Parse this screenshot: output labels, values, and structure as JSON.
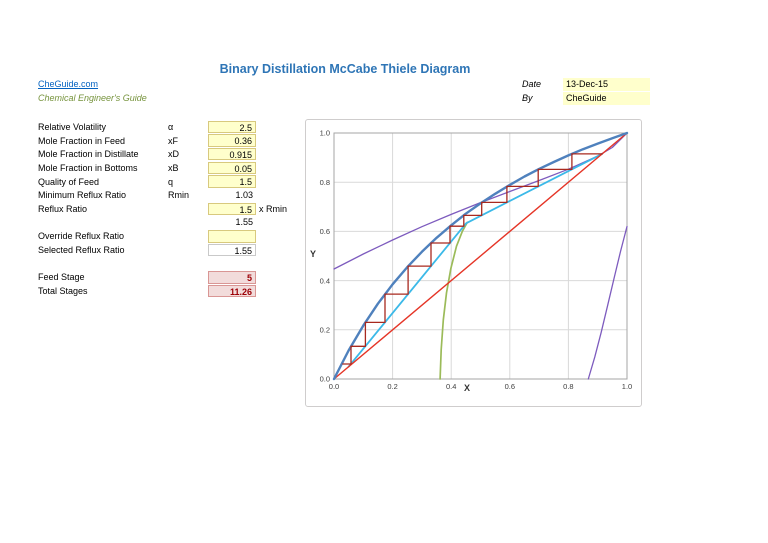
{
  "title": "Binary Distillation McCabe Thiele Diagram",
  "header": {
    "site_link": "CheGuide.com",
    "site_subtitle": "Chemical Engineer's Guide",
    "date_label": "Date",
    "date_value": "13-Dec-15",
    "by_label": "By",
    "by_value": "CheGuide"
  },
  "params": {
    "rows": [
      {
        "label": "Relative Volatility",
        "symbol": "α",
        "value": "2.5",
        "cell": "input",
        "suffix": ""
      },
      {
        "label": "Mole Fraction in Feed",
        "symbol": "xF",
        "value": "0.36",
        "cell": "input",
        "suffix": ""
      },
      {
        "label": "Mole Fraction in Distillate",
        "symbol": "xD",
        "value": "0.915",
        "cell": "input",
        "suffix": ""
      },
      {
        "label": "Mole Fraction in Bottoms",
        "symbol": "xB",
        "value": "0.05",
        "cell": "input",
        "suffix": ""
      },
      {
        "label": "Quality of Feed",
        "symbol": "q",
        "value": "1.5",
        "cell": "input",
        "suffix": ""
      },
      {
        "label": "Minimum Reflux Ratio",
        "symbol": "Rmin",
        "value": "1.03",
        "cell": "plain",
        "suffix": ""
      },
      {
        "label": "Reflux Ratio",
        "symbol": "",
        "value": "1.5",
        "cell": "input",
        "suffix": " x Rmin"
      },
      {
        "label": "",
        "symbol": "",
        "value": "1.55",
        "cell": "plain",
        "suffix": ""
      },
      {
        "label": "Override Reflux Ratio",
        "symbol": "",
        "value": "",
        "cell": "input",
        "suffix": ""
      },
      {
        "label": "Selected Reflux Ratio",
        "symbol": "",
        "value": "1.55",
        "cell": "outlined",
        "suffix": ""
      },
      {
        "label": "",
        "symbol": "",
        "value": "",
        "cell": "none",
        "suffix": ""
      },
      {
        "label": "Feed Stage",
        "symbol": "",
        "value": "5",
        "cell": "result",
        "suffix": ""
      },
      {
        "label": "Total Stages",
        "symbol": "",
        "value": "11.26",
        "cell": "result",
        "suffix": ""
      }
    ]
  },
  "colors": {
    "title_blue": "#2E75B6",
    "link_blue": "#0563C1",
    "subtitle_green": "#76933C",
    "input_fill": "#FFFFCC",
    "input_border": "#D8C97E",
    "result_fill": "#F2DCDB",
    "result_border": "#D99694",
    "result_text": "#9C0006"
  },
  "chart_data": {
    "type": "line",
    "title": "",
    "xlabel": "X",
    "ylabel": "Y",
    "xlim": [
      0,
      1
    ],
    "ylim": [
      0,
      1
    ],
    "grid": true,
    "legend": "none",
    "xticks": [
      "0.0",
      "0.2",
      "0.4",
      "0.6",
      "0.8",
      "1.0"
    ],
    "yticks": [
      "0.0",
      "0.2",
      "0.4",
      "0.6",
      "0.8",
      "1.0"
    ],
    "series": [
      {
        "name": "aux_curve_upper_min_reflux",
        "color": "#7D5BBE",
        "width": 1.3,
        "points": [
          [
            0,
            0.447
          ],
          [
            0.1,
            0.508
          ],
          [
            0.2,
            0.565
          ],
          [
            0.3,
            0.619
          ],
          [
            0.4,
            0.669
          ],
          [
            0.5,
            0.717
          ],
          [
            0.6,
            0.762
          ],
          [
            0.7,
            0.807
          ],
          [
            0.8,
            0.853
          ],
          [
            0.9,
            0.906
          ],
          [
            0.95,
            0.941
          ],
          [
            1,
            1
          ]
        ]
      },
      {
        "name": "aux_curve_lower_right",
        "color": "#7D5BBE",
        "width": 1.3,
        "points": [
          [
            0.868,
            0
          ],
          [
            0.89,
            0.09
          ],
          [
            0.912,
            0.19
          ],
          [
            0.934,
            0.3
          ],
          [
            0.956,
            0.41
          ],
          [
            0.978,
            0.52
          ],
          [
            1,
            0.62
          ]
        ]
      },
      {
        "name": "q_line",
        "color": "#9BBB59",
        "width": 1.7,
        "points": [
          [
            0.362,
            0
          ],
          [
            0.366,
            0.12
          ],
          [
            0.373,
            0.24
          ],
          [
            0.384,
            0.35
          ],
          [
            0.399,
            0.45
          ],
          [
            0.418,
            0.54
          ],
          [
            0.438,
            0.6
          ],
          [
            0.455,
            0.637
          ]
        ]
      },
      {
        "name": "operating_lines",
        "color": "#3BB9E8",
        "width": 1.8,
        "points": [
          [
            0.05,
            0.05
          ],
          [
            0.451,
            0.633
          ],
          [
            0.915,
            0.915
          ]
        ]
      },
      {
        "name": "diagonal_45_line",
        "color": "#E53527",
        "width": 1.4,
        "points": [
          [
            0,
            0
          ],
          [
            1,
            1
          ]
        ]
      },
      {
        "name": "equilibrium_curve",
        "color": "#4F81BD",
        "width": 2.4,
        "points": [
          [
            0,
            0
          ],
          [
            0.05,
            0.116
          ],
          [
            0.1,
            0.217
          ],
          [
            0.15,
            0.306
          ],
          [
            0.2,
            0.385
          ],
          [
            0.25,
            0.455
          ],
          [
            0.3,
            0.517
          ],
          [
            0.35,
            0.574
          ],
          [
            0.4,
            0.625
          ],
          [
            0.45,
            0.672
          ],
          [
            0.5,
            0.714
          ],
          [
            0.55,
            0.753
          ],
          [
            0.6,
            0.789
          ],
          [
            0.65,
            0.823
          ],
          [
            0.7,
            0.854
          ],
          [
            0.75,
            0.882
          ],
          [
            0.8,
            0.909
          ],
          [
            0.85,
            0.934
          ],
          [
            0.9,
            0.957
          ],
          [
            0.95,
            0.979
          ],
          [
            1,
            1
          ]
        ]
      },
      {
        "name": "stages_staircase",
        "color": "#A8281E",
        "width": 1.3,
        "points": [
          [
            0.915,
            0.915
          ],
          [
            0.812,
            0.915
          ],
          [
            0.812,
            0.852
          ],
          [
            0.697,
            0.852
          ],
          [
            0.697,
            0.783
          ],
          [
            0.59,
            0.783
          ],
          [
            0.59,
            0.718
          ],
          [
            0.504,
            0.718
          ],
          [
            0.504,
            0.665
          ],
          [
            0.443,
            0.665
          ],
          [
            0.443,
            0.621
          ],
          [
            0.396,
            0.621
          ],
          [
            0.396,
            0.553
          ],
          [
            0.331,
            0.553
          ],
          [
            0.331,
            0.459
          ],
          [
            0.253,
            0.459
          ],
          [
            0.253,
            0.345
          ],
          [
            0.174,
            0.345
          ],
          [
            0.174,
            0.23
          ],
          [
            0.107,
            0.23
          ],
          [
            0.107,
            0.133
          ],
          [
            0.058,
            0.133
          ],
          [
            0.058,
            0.061
          ],
          [
            0.03,
            0.061
          ]
        ]
      }
    ]
  }
}
